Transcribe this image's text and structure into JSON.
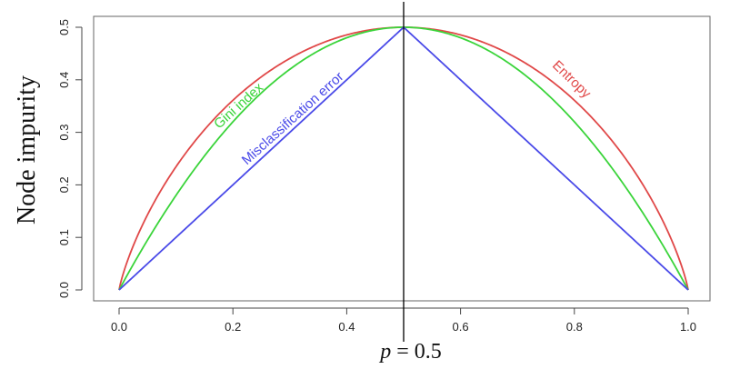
{
  "chart_data": {
    "type": "line",
    "title": "",
    "xlabel": "",
    "ylabel": "Node impurity",
    "xlim": [
      0,
      1
    ],
    "ylim": [
      0,
      0.5
    ],
    "x_ticks": [
      0.0,
      0.2,
      0.4,
      0.6,
      0.8,
      1.0
    ],
    "x_tick_labels": [
      "0.0",
      "0.2",
      "0.4",
      "0.6",
      "0.8",
      "1.0"
    ],
    "y_ticks": [
      0.0,
      0.1,
      0.2,
      0.3,
      0.4,
      0.5
    ],
    "y_tick_labels": [
      "0.0",
      "0.1",
      "0.2",
      "0.3",
      "0.4",
      "0.5"
    ],
    "grid": false,
    "x": [
      0.0,
      0.05,
      0.1,
      0.15,
      0.2,
      0.25,
      0.3,
      0.35,
      0.4,
      0.45,
      0.5,
      0.55,
      0.6,
      0.65,
      0.7,
      0.75,
      0.8,
      0.85,
      0.9,
      0.95,
      1.0
    ],
    "series": [
      {
        "name": "Entropy",
        "color": "#e04848",
        "values": [
          0.0,
          0.143,
          0.234,
          0.305,
          0.361,
          0.406,
          0.441,
          0.467,
          0.485,
          0.496,
          0.5,
          0.496,
          0.485,
          0.467,
          0.441,
          0.406,
          0.361,
          0.305,
          0.234,
          0.143,
          0.0
        ]
      },
      {
        "name": "Gini index",
        "color": "#3ad43a",
        "values": [
          0.0,
          0.095,
          0.18,
          0.255,
          0.32,
          0.375,
          0.42,
          0.455,
          0.48,
          0.495,
          0.5,
          0.495,
          0.48,
          0.455,
          0.42,
          0.375,
          0.32,
          0.255,
          0.18,
          0.095,
          0.0
        ]
      },
      {
        "name": "Misclassification error",
        "color": "#4a4ae8",
        "values": [
          0.0,
          0.05,
          0.1,
          0.15,
          0.2,
          0.25,
          0.3,
          0.35,
          0.4,
          0.45,
          0.5,
          0.45,
          0.4,
          0.35,
          0.3,
          0.25,
          0.2,
          0.15,
          0.1,
          0.05,
          0.0
        ]
      }
    ],
    "annotations": [
      {
        "text": "Gini index",
        "series": "Gini index"
      },
      {
        "text": "Misclassification error",
        "series": "Misclassification error"
      },
      {
        "text": "Entropy",
        "series": "Entropy"
      }
    ],
    "vline": {
      "x": 0.5,
      "label_italic": "p",
      "label_rest": " = 0.5"
    }
  }
}
